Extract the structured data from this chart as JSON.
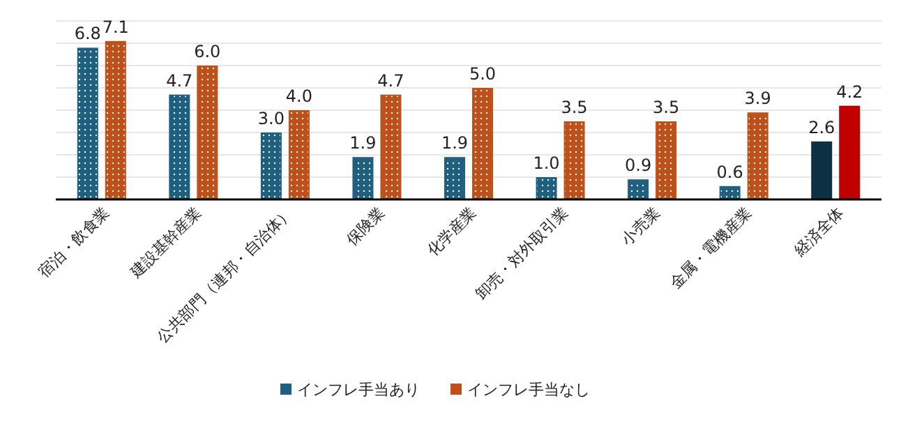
{
  "chart_data": {
    "type": "bar",
    "categories": [
      "宿泊・飲食業",
      "建設基幹産業",
      "公共部門（連邦・自治体）",
      "保険業",
      "化学産業",
      "卸売・対外取引業",
      "小売業",
      "金属・電機産業",
      "経済全体"
    ],
    "series": [
      {
        "name": "インフレ手当あり",
        "color": "#1f6080",
        "colors": [
          "#1f6080",
          "#1f6080",
          "#1f6080",
          "#1f6080",
          "#1f6080",
          "#1f6080",
          "#1f6080",
          "#1f6080",
          "#0d3045"
        ],
        "values": [
          6.8,
          4.7,
          3.0,
          1.9,
          1.9,
          1.0,
          0.9,
          0.6,
          2.6
        ],
        "value_labels": [
          "6.8",
          "4.7",
          "3.0",
          "1.9",
          "1.9",
          "1.0",
          "0.9",
          "0.6",
          "2.6"
        ]
      },
      {
        "name": "インフレ手当なし",
        "color": "#c0501a",
        "colors": [
          "#c0501a",
          "#c0501a",
          "#c0501a",
          "#c0501a",
          "#c0501a",
          "#c0501a",
          "#c0501a",
          "#c0501a",
          "#c00000"
        ],
        "values": [
          7.1,
          6.0,
          4.0,
          4.7,
          5.0,
          3.5,
          3.5,
          3.9,
          4.2
        ],
        "value_labels": [
          "7.1",
          "6.0",
          "4.0",
          "4.7",
          "5.0",
          "3.5",
          "3.5",
          "3.9",
          "4.2"
        ]
      }
    ],
    "ylim": [
      0,
      8
    ],
    "yticks": [
      {
        "value": 1,
        "label": null
      },
      {
        "value": 2,
        "label": null
      },
      {
        "value": 3,
        "label": null
      },
      {
        "value": 4,
        "label": null
      },
      {
        "value": 5,
        "label": null
      },
      {
        "value": 6,
        "label": null
      },
      {
        "value": 7,
        "label": null
      },
      {
        "value": 8,
        "label": null
      }
    ],
    "grid": "y",
    "tick_labels": "x",
    "legend": "bottom"
  }
}
